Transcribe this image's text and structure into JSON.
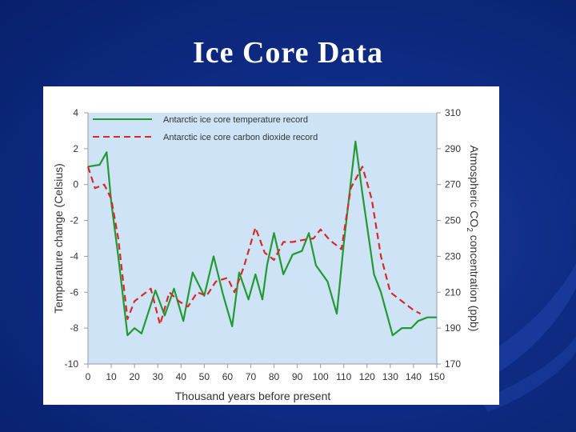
{
  "slide": {
    "title": "Ice Core Data"
  },
  "colors": {
    "plot_background": "#cfe3f7",
    "temperature_line": "#229a33",
    "co2_line": "#d62a2a"
  },
  "chart_data": {
    "type": "line",
    "title": "",
    "xlabel": "Thousand years before present",
    "ylabel": "Temperature change (Celsius)",
    "y2label_parts": [
      "Atmospheric CO",
      "2",
      " concentration  (ppb)"
    ],
    "xlim": [
      0,
      150
    ],
    "ylim": [
      -10,
      4
    ],
    "y2lim": [
      170,
      310
    ],
    "x_ticks": [
      0,
      10,
      20,
      30,
      40,
      50,
      60,
      70,
      80,
      90,
      100,
      110,
      120,
      130,
      140,
      150
    ],
    "y_ticks": [
      -10,
      -8,
      -6,
      -4,
      -2,
      0,
      2,
      4
    ],
    "y2_ticks": [
      170,
      190,
      210,
      230,
      250,
      270,
      290,
      310
    ],
    "legend_position": "top-left",
    "series": [
      {
        "name": "Antarctic ice core temperature record",
        "axis": "left",
        "style": "solid",
        "x": [
          0,
          5,
          8,
          10,
          13,
          17,
          20,
          23,
          25,
          29,
          33,
          37,
          41,
          45,
          50,
          54,
          58,
          62,
          65,
          69,
          72,
          75,
          77,
          80,
          84,
          88,
          92,
          95,
          98,
          103,
          107,
          110,
          115,
          118,
          123,
          126,
          131,
          135,
          139,
          142,
          146,
          150
        ],
        "values": [
          1.0,
          1.1,
          1.8,
          -1.0,
          -4.0,
          -8.4,
          -8.0,
          -8.3,
          -7.5,
          -5.9,
          -7.3,
          -5.8,
          -7.6,
          -4.9,
          -6.2,
          -4.0,
          -6.1,
          -7.9,
          -4.9,
          -6.4,
          -5.0,
          -6.4,
          -4.5,
          -2.7,
          -5.0,
          -3.9,
          -3.7,
          -2.7,
          -4.5,
          -5.4,
          -7.2,
          -3.3,
          2.4,
          -0.5,
          -5.0,
          -6.0,
          -8.4,
          -8.0,
          -8.0,
          -7.6,
          -7.4,
          -7.4
        ]
      },
      {
        "name": "Antarctic ice core carbon dioxide record",
        "axis": "right",
        "style": "dashed",
        "x": [
          0,
          3,
          7,
          10,
          13,
          17,
          20,
          23,
          27,
          31,
          35,
          39,
          43,
          47,
          51,
          55,
          60,
          63,
          67,
          72,
          76,
          80,
          84,
          88,
          92,
          97,
          100,
          104,
          109,
          113,
          118,
          122,
          126,
          130,
          135,
          140,
          143
        ],
        "values": [
          280,
          268,
          270,
          262,
          240,
          195,
          205,
          208,
          212,
          192,
          210,
          205,
          202,
          210,
          208,
          216,
          218,
          210,
          224,
          246,
          232,
          228,
          238,
          238,
          239,
          240,
          245,
          239,
          234,
          268,
          280,
          262,
          230,
          210,
          205,
          200,
          198
        ]
      }
    ]
  }
}
